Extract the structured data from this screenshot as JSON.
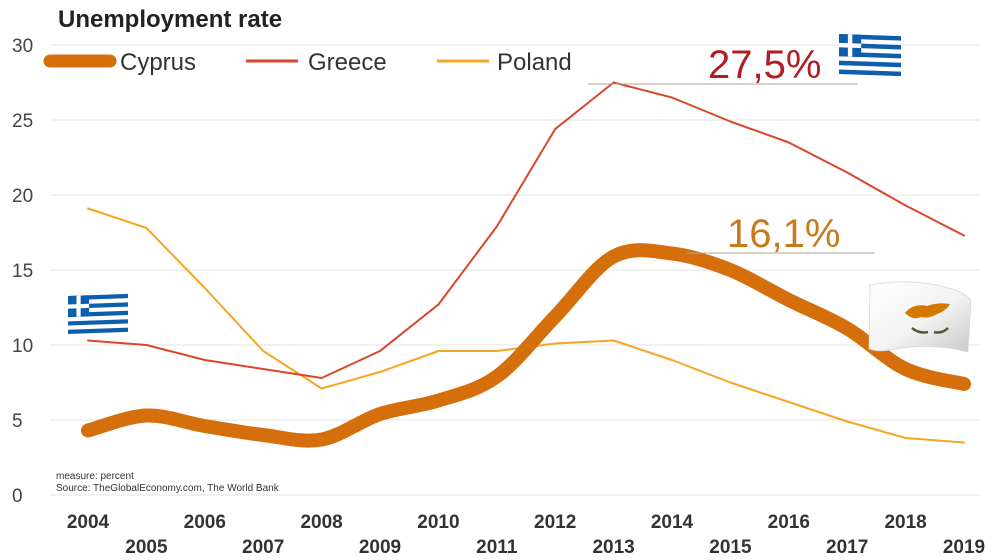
{
  "chart_data": {
    "type": "line",
    "title": "Unemployment rate",
    "xlabel": "",
    "ylabel": "",
    "x": [
      2004,
      2005,
      2006,
      2007,
      2008,
      2009,
      2010,
      2011,
      2012,
      2013,
      2014,
      2015,
      2016,
      2017,
      2018,
      2019
    ],
    "x_tick_labels": [
      "2004",
      "2005",
      "2006",
      "2007",
      "2008",
      "2009",
      "2010",
      "2011",
      "2012",
      "2013",
      "2014",
      "2015",
      "2016",
      "2017",
      "2018",
      "2019"
    ],
    "ylim": [
      0,
      30
    ],
    "y_ticks": [
      0,
      5,
      10,
      15,
      20,
      25,
      30
    ],
    "grid": true,
    "legend_position": "top",
    "series": [
      {
        "name": "Cyprus",
        "color": "#d46f0c",
        "emphasis": "thick",
        "values": [
          4.3,
          5.3,
          4.6,
          4.0,
          3.7,
          5.4,
          6.3,
          7.9,
          11.9,
          15.9,
          16.1,
          15.0,
          13.0,
          11.1,
          8.4,
          7.4
        ]
      },
      {
        "name": "Greece",
        "color": "#d9462a",
        "values": [
          10.3,
          10.0,
          9.0,
          8.4,
          7.8,
          9.6,
          12.7,
          17.9,
          24.4,
          27.5,
          26.5,
          24.9,
          23.5,
          21.5,
          19.3,
          17.3
        ]
      },
      {
        "name": "Poland",
        "color": "#f5a623",
        "values": [
          19.1,
          17.8,
          13.8,
          9.6,
          7.1,
          8.2,
          9.6,
          9.6,
          10.1,
          10.3,
          9.0,
          7.5,
          6.2,
          4.9,
          3.8,
          3.5
        ]
      }
    ],
    "annotations": [
      {
        "text": "27,5%",
        "color": "#b01e23",
        "series": "Greece",
        "x": 2013,
        "y": 27.5
      },
      {
        "text": "16,1%",
        "color": "#c8791c",
        "series": "Cyprus",
        "x": 2014,
        "y": 16.1
      }
    ],
    "footnote": {
      "measure": "measure: percent",
      "source": "Source: TheGlobalEconomy.com, The World Bank"
    },
    "flags": [
      {
        "icon": "greece-flag-icon",
        "colors": [
          "#0d5eaf",
          "#ffffff"
        ]
      },
      {
        "icon": "cyprus-flag-icon",
        "colors": [
          "#ffffff",
          "#d57800",
          "#4e5b31"
        ]
      }
    ]
  }
}
